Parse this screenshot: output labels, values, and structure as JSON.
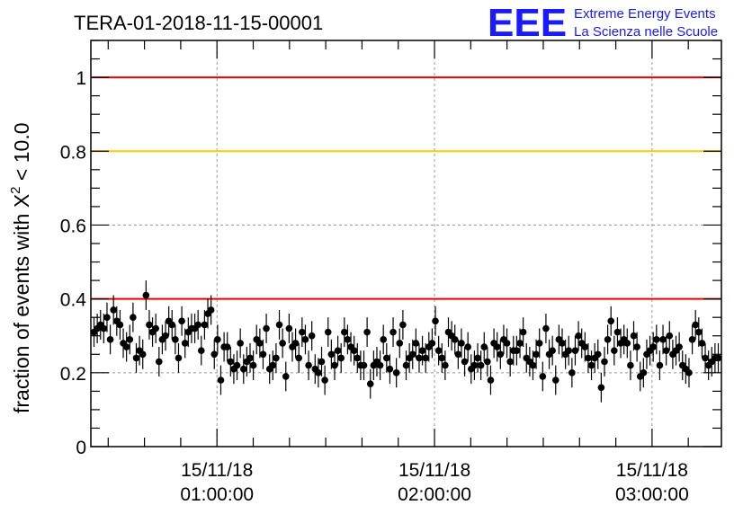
{
  "chart_data": {
    "type": "scatter",
    "title": "TERA-01-2018-11-15-00001",
    "ylabel_prefix": "fraction of events with ",
    "ylabel_symbol": "X",
    "ylabel_sup": "2",
    "ylabel_suffix": " < 10.0",
    "xlabel": "",
    "x_start": "00:00:00",
    "x_end": "03:20:00",
    "xlim_minutes": [
      0,
      200
    ],
    "ylim": [
      0,
      1.1
    ],
    "y_ticks": [
      {
        "value": 0,
        "label": "0"
      },
      {
        "value": 0.2,
        "label": "0.2"
      },
      {
        "value": 0.4,
        "label": "0.4"
      },
      {
        "value": 0.6,
        "label": "0.6"
      },
      {
        "value": 0.8,
        "label": "0.8"
      },
      {
        "value": 1.0,
        "label": "1"
      }
    ],
    "x_ticks": [
      {
        "minute": 40,
        "date": "15/11/18",
        "time": "01:00:00"
      },
      {
        "minute": 109,
        "date": "15/11/18",
        "time": "02:00:00"
      },
      {
        "minute": 178,
        "date": "15/11/18",
        "time": "03:00:00"
      }
    ],
    "grid": true,
    "reference_lines": [
      {
        "y": 1.0,
        "color": "#ee0000"
      },
      {
        "y": 0.8,
        "color": "#ffcc00"
      },
      {
        "y": 0.4,
        "color": "#ee0000"
      }
    ],
    "marker_color": "#000000",
    "error_bar": 0.04,
    "values": [
      0.31,
      0.32,
      0.33,
      0.32,
      0.35,
      0.29,
      0.37,
      0.34,
      0.33,
      0.28,
      0.27,
      0.29,
      0.35,
      0.24,
      0.26,
      0.25,
      0.41,
      0.33,
      0.31,
      0.32,
      0.23,
      0.29,
      0.3,
      0.34,
      0.33,
      0.29,
      0.24,
      0.34,
      0.28,
      0.31,
      0.32,
      0.32,
      0.33,
      0.26,
      0.33,
      0.36,
      0.37,
      0.25,
      0.29,
      0.18,
      0.27,
      0.27,
      0.23,
      0.21,
      0.22,
      0.28,
      0.21,
      0.23,
      0.24,
      0.22,
      0.29,
      0.28,
      0.25,
      0.32,
      0.21,
      0.22,
      0.24,
      0.33,
      0.28,
      0.19,
      0.32,
      0.27,
      0.28,
      0.24,
      0.31,
      0.29,
      0.22,
      0.3,
      0.21,
      0.2,
      0.23,
      0.18,
      0.31,
      0.25,
      0.22,
      0.26,
      0.24,
      0.31,
      0.29,
      0.27,
      0.26,
      0.24,
      0.22,
      0.22,
      0.31,
      0.17,
      0.22,
      0.23,
      0.22,
      0.29,
      0.24,
      0.21,
      0.31,
      0.2,
      0.28,
      0.33,
      0.22,
      0.24,
      0.25,
      0.28,
      0.24,
      0.26,
      0.24,
      0.27,
      0.28,
      0.34,
      0.26,
      0.24,
      0.22,
      0.31,
      0.3,
      0.29,
      0.25,
      0.28,
      0.23,
      0.27,
      0.21,
      0.22,
      0.24,
      0.22,
      0.27,
      0.23,
      0.18,
      0.28,
      0.27,
      0.25,
      0.29,
      0.28,
      0.23,
      0.26,
      0.26,
      0.28,
      0.31,
      0.24,
      0.23,
      0.22,
      0.25,
      0.28,
      0.19,
      0.32,
      0.25,
      0.26,
      0.18,
      0.29,
      0.28,
      0.25,
      0.26,
      0.2,
      0.26,
      0.3,
      0.28,
      0.27,
      0.24,
      0.22,
      0.24,
      0.25,
      0.16,
      0.23,
      0.29,
      0.34,
      0.26,
      0.31,
      0.28,
      0.29,
      0.28,
      0.22,
      0.3,
      0.27,
      0.19,
      0.2,
      0.25,
      0.26,
      0.27,
      0.29,
      0.22,
      0.29,
      0.26,
      0.3,
      0.25,
      0.26,
      0.27,
      0.22,
      0.21,
      0.2,
      0.29,
      0.33,
      0.31,
      0.28,
      0.24,
      0.22,
      0.23,
      0.24,
      0.24
    ]
  },
  "logo": {
    "mark": "EEE",
    "line1": "Extreme Energy Events",
    "line2": "La Scienza nelle Scuole",
    "color": "#1a1aff"
  }
}
